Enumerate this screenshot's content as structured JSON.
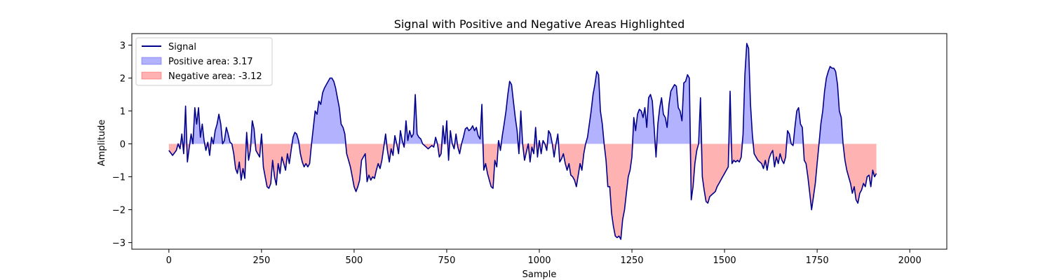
{
  "chart_data": {
    "type": "area",
    "title": "Signal with Positive and Negative Areas Highlighted",
    "xlabel": "Sample",
    "ylabel": "Amplitude",
    "xlim": [
      -100,
      2100
    ],
    "ylim": [
      -3.2,
      3.35
    ],
    "xticks": [
      0,
      250,
      500,
      750,
      1000,
      1250,
      1500,
      1750,
      2000
    ],
    "yticks": [
      3,
      2,
      1,
      0,
      -1,
      -2,
      -3
    ],
    "grid": false,
    "legend_position": "top-left",
    "series": [
      {
        "name": "Signal",
        "kind": "line",
        "color": "#00008b"
      },
      {
        "name": "Positive area: 3.17",
        "kind": "fill",
        "color": "#0000ff"
      },
      {
        "name": "Negative area: -3.12",
        "kind": "fill",
        "color": "#ff0000"
      }
    ],
    "points": [
      [
        0,
        -0.2
      ],
      [
        10,
        -0.35
      ],
      [
        20,
        -0.2
      ],
      [
        25,
        0.0
      ],
      [
        30,
        -0.15
      ],
      [
        35,
        0.3
      ],
      [
        40,
        -0.3
      ],
      [
        45,
        1.15
      ],
      [
        50,
        -0.55
      ],
      [
        55,
        -0.1
      ],
      [
        60,
        0.3
      ],
      [
        65,
        0.0
      ],
      [
        70,
        1.1
      ],
      [
        75,
        0.6
      ],
      [
        80,
        1.1
      ],
      [
        85,
        0.2
      ],
      [
        90,
        0.6
      ],
      [
        95,
        0.1
      ],
      [
        100,
        -0.2
      ],
      [
        105,
        0.05
      ],
      [
        110,
        -0.35
      ],
      [
        115,
        0.2
      ],
      [
        120,
        0.0
      ],
      [
        125,
        0.4
      ],
      [
        130,
        0.6
      ],
      [
        135,
        0.9
      ],
      [
        140,
        0.6
      ],
      [
        145,
        0.0
      ],
      [
        150,
        0.1
      ],
      [
        155,
        0.5
      ],
      [
        160,
        0.3
      ],
      [
        165,
        0.05
      ],
      [
        170,
        0.0
      ],
      [
        175,
        -0.3
      ],
      [
        180,
        -0.75
      ],
      [
        185,
        -0.9
      ],
      [
        190,
        -0.55
      ],
      [
        195,
        -1.1
      ],
      [
        200,
        -0.75
      ],
      [
        205,
        -1.05
      ],
      [
        210,
        0.35
      ],
      [
        215,
        -0.5
      ],
      [
        220,
        -0.2
      ],
      [
        225,
        0.7
      ],
      [
        230,
        0.45
      ],
      [
        235,
        -0.2
      ],
      [
        240,
        -0.3
      ],
      [
        245,
        -0.4
      ],
      [
        250,
        0.3
      ],
      [
        255,
        -0.7
      ],
      [
        260,
        -1.0
      ],
      [
        265,
        -1.3
      ],
      [
        270,
        -1.35
      ],
      [
        275,
        -1.2
      ],
      [
        280,
        -0.5
      ],
      [
        285,
        -1.0
      ],
      [
        290,
        -1.25
      ],
      [
        295,
        -0.6
      ],
      [
        300,
        -0.9
      ],
      [
        305,
        -0.4
      ],
      [
        310,
        -0.6
      ],
      [
        315,
        -0.8
      ],
      [
        320,
        -0.3
      ],
      [
        325,
        -0.6
      ],
      [
        330,
        -0.2
      ],
      [
        335,
        0.2
      ],
      [
        340,
        0.35
      ],
      [
        345,
        0.3
      ],
      [
        350,
        0.1
      ],
      [
        355,
        -0.3
      ],
      [
        360,
        -0.55
      ],
      [
        365,
        -0.7
      ],
      [
        370,
        -0.6
      ],
      [
        375,
        -0.7
      ],
      [
        380,
        -0.6
      ],
      [
        385,
        0.0
      ],
      [
        390,
        0.5
      ],
      [
        395,
        1.0
      ],
      [
        400,
        0.9
      ],
      [
        405,
        1.3
      ],
      [
        410,
        1.2
      ],
      [
        415,
        1.55
      ],
      [
        420,
        1.7
      ],
      [
        425,
        1.8
      ],
      [
        430,
        1.9
      ],
      [
        435,
        2.0
      ],
      [
        440,
        2.0
      ],
      [
        445,
        1.9
      ],
      [
        450,
        1.7
      ],
      [
        455,
        1.4
      ],
      [
        460,
        1.1
      ],
      [
        465,
        0.6
      ],
      [
        470,
        0.5
      ],
      [
        475,
        0.3
      ],
      [
        480,
        -0.3
      ],
      [
        485,
        -0.5
      ],
      [
        490,
        -0.7
      ],
      [
        495,
        -1.0
      ],
      [
        500,
        -1.3
      ],
      [
        505,
        -1.45
      ],
      [
        510,
        -1.3
      ],
      [
        515,
        -1.1
      ],
      [
        520,
        -0.5
      ],
      [
        525,
        -0.4
      ],
      [
        530,
        -0.3
      ],
      [
        535,
        -1.15
      ],
      [
        540,
        -0.95
      ],
      [
        545,
        -1.1
      ],
      [
        550,
        -1.0
      ],
      [
        555,
        -1.05
      ],
      [
        560,
        -0.8
      ],
      [
        565,
        -0.6
      ],
      [
        570,
        -0.75
      ],
      [
        575,
        -0.5
      ],
      [
        580,
        -0.1
      ],
      [
        585,
        0.3
      ],
      [
        590,
        -0.2
      ],
      [
        595,
        -0.55
      ],
      [
        600,
        -0.15
      ],
      [
        605,
        -0.35
      ],
      [
        610,
        0.25
      ],
      [
        615,
        0.0
      ],
      [
        620,
        -0.3
      ],
      [
        625,
        0.4
      ],
      [
        630,
        0.1
      ],
      [
        635,
        -0.1
      ],
      [
        640,
        0.7
      ],
      [
        645,
        0.1
      ],
      [
        650,
        0.4
      ],
      [
        655,
        0.2
      ],
      [
        660,
        0.3
      ],
      [
        665,
        1.5
      ],
      [
        670,
        0.3
      ],
      [
        675,
        0.2
      ],
      [
        680,
        0.15
      ],
      [
        685,
        0.0
      ],
      [
        690,
        -0.05
      ],
      [
        695,
        -0.1
      ],
      [
        700,
        -0.15
      ],
      [
        705,
        -0.1
      ],
      [
        710,
        -0.05
      ],
      [
        715,
        -0.1
      ],
      [
        720,
        0.2
      ],
      [
        725,
        0.0
      ],
      [
        730,
        -0.4
      ],
      [
        735,
        -0.3
      ],
      [
        740,
        0.55
      ],
      [
        745,
        0.0
      ],
      [
        750,
        0.7
      ],
      [
        755,
        -0.5
      ],
      [
        760,
        0.4
      ],
      [
        765,
        0.0
      ],
      [
        770,
        -0.15
      ],
      [
        775,
        0.3
      ],
      [
        780,
        -0.1
      ],
      [
        785,
        -0.3
      ],
      [
        790,
        0.0
      ],
      [
        795,
        0.2
      ],
      [
        800,
        0.45
      ],
      [
        805,
        0.5
      ],
      [
        810,
        0.4
      ],
      [
        815,
        0.45
      ],
      [
        820,
        0.55
      ],
      [
        825,
        0.4
      ],
      [
        830,
        0.5
      ],
      [
        835,
        0.25
      ],
      [
        840,
        0.15
      ],
      [
        845,
        1.2
      ],
      [
        850,
        -0.8
      ],
      [
        855,
        -0.6
      ],
      [
        860,
        -0.9
      ],
      [
        865,
        -1.1
      ],
      [
        870,
        -1.3
      ],
      [
        875,
        -1.35
      ],
      [
        880,
        -0.5
      ],
      [
        885,
        -0.7
      ],
      [
        890,
        0.1
      ],
      [
        895,
        -0.2
      ],
      [
        900,
        0.25
      ],
      [
        905,
        0.6
      ],
      [
        910,
        1.0
      ],
      [
        915,
        1.5
      ],
      [
        920,
        1.9
      ],
      [
        925,
        1.8
      ],
      [
        930,
        1.3
      ],
      [
        935,
        0.8
      ],
      [
        940,
        0.4
      ],
      [
        945,
        -0.3
      ],
      [
        950,
        1.0
      ],
      [
        955,
        0.0
      ],
      [
        960,
        -0.5
      ],
      [
        965,
        -0.25
      ],
      [
        970,
        0.0
      ],
      [
        975,
        -0.55
      ],
      [
        980,
        -0.1
      ],
      [
        985,
        -0.3
      ],
      [
        990,
        0.5
      ],
      [
        995,
        -0.4
      ],
      [
        1000,
        0.1
      ],
      [
        1005,
        -0.3
      ],
      [
        1010,
        0.1
      ],
      [
        1015,
        0.0
      ],
      [
        1020,
        -0.2
      ],
      [
        1025,
        0.4
      ],
      [
        1030,
        0.3
      ],
      [
        1035,
        0.0
      ],
      [
        1040,
        -0.4
      ],
      [
        1045,
        0.0
      ],
      [
        1050,
        0.3
      ],
      [
        1055,
        -0.55
      ],
      [
        1060,
        -0.45
      ],
      [
        1065,
        -0.3
      ],
      [
        1070,
        -0.6
      ],
      [
        1075,
        -0.8
      ],
      [
        1080,
        -0.6
      ],
      [
        1085,
        -0.95
      ],
      [
        1090,
        -1.0
      ],
      [
        1095,
        -1.1
      ],
      [
        1100,
        -1.3
      ],
      [
        1105,
        -0.95
      ],
      [
        1110,
        -0.6
      ],
      [
        1115,
        -0.8
      ],
      [
        1120,
        -0.3
      ],
      [
        1125,
        0.0
      ],
      [
        1130,
        0.2
      ],
      [
        1135,
        0.6
      ],
      [
        1140,
        1.0
      ],
      [
        1145,
        1.5
      ],
      [
        1150,
        1.8
      ],
      [
        1155,
        2.2
      ],
      [
        1160,
        2.1
      ],
      [
        1165,
        1.0
      ],
      [
        1170,
        0.6
      ],
      [
        1175,
        0.0
      ],
      [
        1180,
        -0.5
      ],
      [
        1185,
        -1.3
      ],
      [
        1190,
        -1.3
      ],
      [
        1195,
        -2.1
      ],
      [
        1200,
        -2.5
      ],
      [
        1205,
        -2.8
      ],
      [
        1210,
        -2.85
      ],
      [
        1215,
        -2.8
      ],
      [
        1220,
        -2.9
      ],
      [
        1225,
        -2.3
      ],
      [
        1230,
        -2.0
      ],
      [
        1235,
        -1.5
      ],
      [
        1240,
        -1.0
      ],
      [
        1245,
        -0.8
      ],
      [
        1250,
        -0.4
      ],
      [
        1255,
        0.8
      ],
      [
        1260,
        0.4
      ],
      [
        1265,
        0.9
      ],
      [
        1270,
        1.05
      ],
      [
        1275,
        1.0
      ],
      [
        1280,
        0.8
      ],
      [
        1285,
        1.1
      ],
      [
        1290,
        0.5
      ],
      [
        1295,
        1.4
      ],
      [
        1300,
        1.5
      ],
      [
        1305,
        1.3
      ],
      [
        1310,
        0.5
      ],
      [
        1315,
        -0.4
      ],
      [
        1320,
        0.6
      ],
      [
        1325,
        1.1
      ],
      [
        1330,
        1.4
      ],
      [
        1335,
        0.9
      ],
      [
        1340,
        0.8
      ],
      [
        1345,
        0.5
      ],
      [
        1350,
        1.2
      ],
      [
        1355,
        1.6
      ],
      [
        1360,
        1.7
      ],
      [
        1365,
        1.8
      ],
      [
        1370,
        1.75
      ],
      [
        1375,
        1.1
      ],
      [
        1380,
        1.0
      ],
      [
        1385,
        0.7
      ],
      [
        1390,
        1.85
      ],
      [
        1395,
        1.9
      ],
      [
        1400,
        2.1
      ],
      [
        1405,
        2.0
      ],
      [
        1410,
        -1.7
      ],
      [
        1415,
        -1.3
      ],
      [
        1420,
        -0.6
      ],
      [
        1425,
        -0.2
      ],
      [
        1430,
        0.0
      ],
      [
        1435,
        1.4
      ],
      [
        1440,
        -1.0
      ],
      [
        1445,
        -1.4
      ],
      [
        1450,
        -1.75
      ],
      [
        1455,
        -1.8
      ],
      [
        1460,
        -1.6
      ],
      [
        1465,
        -1.55
      ],
      [
        1470,
        -1.5
      ],
      [
        1475,
        -1.45
      ],
      [
        1480,
        -1.3
      ],
      [
        1485,
        -1.2
      ],
      [
        1490,
        -1.1
      ],
      [
        1495,
        -1.0
      ],
      [
        1500,
        -0.9
      ],
      [
        1505,
        -0.8
      ],
      [
        1510,
        -0.7
      ],
      [
        1515,
        1.6
      ],
      [
        1520,
        -0.6
      ],
      [
        1525,
        -0.5
      ],
      [
        1530,
        -0.55
      ],
      [
        1535,
        -0.5
      ],
      [
        1540,
        -0.55
      ],
      [
        1545,
        -0.4
      ],
      [
        1550,
        0.3
      ],
      [
        1555,
        2.1
      ],
      [
        1560,
        3.05
      ],
      [
        1565,
        2.9
      ],
      [
        1570,
        1.2
      ],
      [
        1575,
        0.3
      ],
      [
        1580,
        -0.3
      ],
      [
        1585,
        -0.4
      ],
      [
        1590,
        -0.5
      ],
      [
        1595,
        -0.55
      ],
      [
        1600,
        -0.6
      ],
      [
        1605,
        -0.75
      ],
      [
        1610,
        -0.5
      ],
      [
        1615,
        -0.8
      ],
      [
        1620,
        -0.45
      ],
      [
        1625,
        -0.3
      ],
      [
        1630,
        -0.2
      ],
      [
        1635,
        -0.7
      ],
      [
        1640,
        -0.4
      ],
      [
        1645,
        -0.6
      ],
      [
        1650,
        -0.3
      ],
      [
        1655,
        -0.5
      ],
      [
        1660,
        -0.6
      ],
      [
        1665,
        -0.4
      ],
      [
        1670,
        0.4
      ],
      [
        1675,
        0.3
      ],
      [
        1680,
        0.0
      ],
      [
        1685,
        -0.05
      ],
      [
        1690,
        0.5
      ],
      [
        1695,
        1.0
      ],
      [
        1700,
        1.1
      ],
      [
        1705,
        0.6
      ],
      [
        1710,
        0.5
      ],
      [
        1715,
        -0.5
      ],
      [
        1720,
        -0.6
      ],
      [
        1725,
        -1.0
      ],
      [
        1730,
        -1.5
      ],
      [
        1735,
        -2.0
      ],
      [
        1740,
        -1.6
      ],
      [
        1745,
        -1.2
      ],
      [
        1750,
        -0.6
      ],
      [
        1755,
        0.0
      ],
      [
        1760,
        0.6
      ],
      [
        1765,
        1.0
      ],
      [
        1770,
        1.6
      ],
      [
        1775,
        2.0
      ],
      [
        1780,
        2.2
      ],
      [
        1785,
        2.35
      ],
      [
        1790,
        2.3
      ],
      [
        1795,
        2.3
      ],
      [
        1800,
        2.2
      ],
      [
        1805,
        1.8
      ],
      [
        1810,
        1.0
      ],
      [
        1815,
        0.8
      ],
      [
        1820,
        0.0
      ],
      [
        1825,
        -0.5
      ],
      [
        1830,
        -0.8
      ],
      [
        1835,
        -1.0
      ],
      [
        1840,
        -1.2
      ],
      [
        1845,
        -1.5
      ],
      [
        1850,
        -1.3
      ],
      [
        1855,
        -1.7
      ],
      [
        1860,
        -1.8
      ],
      [
        1865,
        -1.5
      ],
      [
        1870,
        -1.4
      ],
      [
        1875,
        -1.2
      ],
      [
        1880,
        -1.3
      ],
      [
        1885,
        -1.0
      ],
      [
        1890,
        -0.95
      ],
      [
        1895,
        -1.3
      ],
      [
        1900,
        -0.8
      ],
      [
        1905,
        -1.0
      ],
      [
        1910,
        -0.9
      ]
    ]
  }
}
